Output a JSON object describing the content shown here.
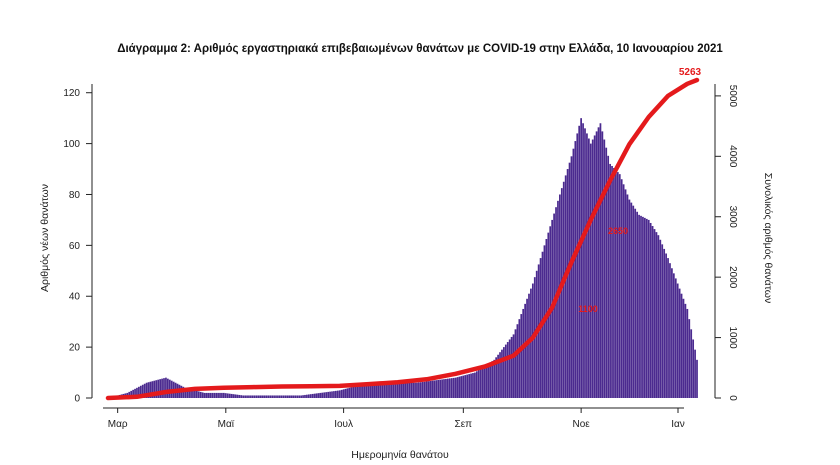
{
  "chart_data": {
    "type": "bar+line",
    "title": "Διάγραμμα 2: Αριθμός εργαστηριακά επιβεβαιωμένων θανάτων με COVID-19 στην Ελλάδα, 10 Ιανουαρίου 2021",
    "xlabel": "Ημερομηνία θανάτου",
    "ylabel_left": "Αριθμός νέων θανάτων",
    "ylabel_right": "Συνολικός αριθμός θανάτων",
    "ylim_left": [
      0,
      125
    ],
    "ylim_right": [
      0,
      5263
    ],
    "yticks_left": [
      "0",
      "20",
      "40",
      "60",
      "80",
      "100",
      "120"
    ],
    "yticks_right": [
      "0",
      "1000",
      "2000",
      "3000",
      "4000",
      "5000"
    ],
    "x_tick_labels": [
      "Μαρ",
      "Μαϊ",
      "Ιουλ",
      "Σεπ",
      "Νοε",
      "Ιαν"
    ],
    "x_range_days": [
      0,
      305
    ],
    "colors": {
      "bars": "#4b2a8f",
      "cumulative": "#e41a1c"
    },
    "daily_deaths": {
      "day": [
        0,
        10,
        20,
        30,
        40,
        50,
        60,
        70,
        80,
        90,
        100,
        110,
        120,
        130,
        140,
        150,
        160,
        170,
        180,
        190,
        200,
        210,
        220,
        230,
        240,
        245,
        250,
        255,
        260,
        265,
        270,
        275,
        280,
        285,
        290,
        295,
        300,
        305
      ],
      "value": [
        0,
        2,
        6,
        8,
        4,
        2,
        2,
        1,
        1,
        1,
        1,
        2,
        3,
        5,
        6,
        6,
        6,
        7,
        8,
        10,
        15,
        25,
        45,
        70,
        95,
        110,
        100,
        108,
        92,
        88,
        78,
        72,
        70,
        64,
        55,
        45,
        35,
        15
      ]
    },
    "cumulative_deaths": {
      "day": [
        0,
        15,
        30,
        45,
        60,
        75,
        90,
        105,
        120,
        135,
        150,
        165,
        180,
        195,
        210,
        220,
        230,
        240,
        250,
        260,
        270,
        280,
        290,
        300,
        305
      ],
      "value": [
        0,
        20,
        100,
        150,
        170,
        180,
        190,
        195,
        200,
        230,
        260,
        310,
        400,
        520,
        700,
        1000,
        1500,
        2250,
        2950,
        3600,
        4200,
        4650,
        5000,
        5200,
        5263
      ]
    },
    "annotations": [
      "5263",
      "2650",
      "1100"
    ]
  }
}
